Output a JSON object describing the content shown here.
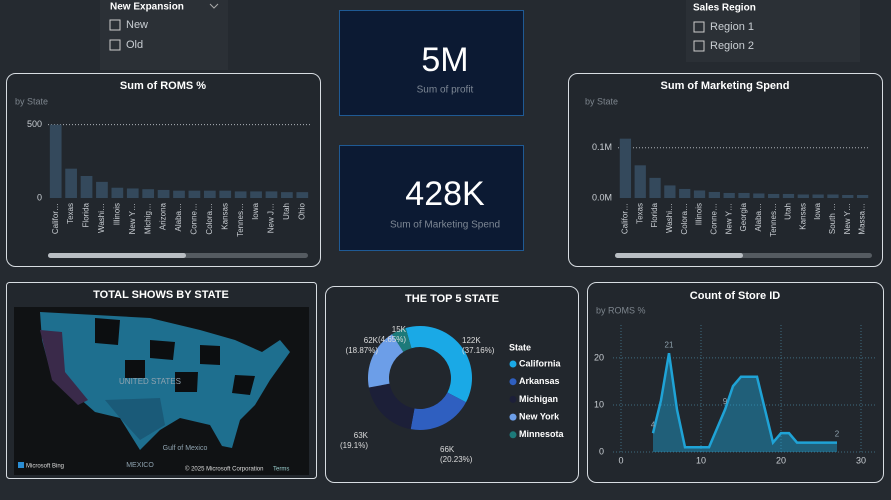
{
  "slicers": [
    {
      "title": "New Expansion",
      "items": [
        "New",
        "Old"
      ]
    },
    {
      "title": "Sales Region",
      "items": [
        "Region 1",
        "Region 2"
      ]
    }
  ],
  "cards": [
    {
      "value": "5M",
      "label": "Sum of profit"
    },
    {
      "value": "428K",
      "label": "Sum of Marketing Spend"
    }
  ],
  "map": {
    "title": "TOTAL SHOWS BY STATE",
    "country": "UNITED STATES",
    "gulf": "Gulf of Mexico",
    "mexico": "MEXICO",
    "brand": "Microsoft Bing",
    "attribution": "© 2025 Microsoft Corporation",
    "terms": "Terms"
  },
  "chart_data": [
    {
      "type": "bar",
      "title": "Sum of ROMS %",
      "subtitle": "by State",
      "categories": [
        "Califor…",
        "Texas",
        "Florida",
        "Washi…",
        "Illinois",
        "New Y…",
        "Michig…",
        "Arizona",
        "Alaba…",
        "Conne…",
        "Colora…",
        "Kansas",
        "Tennes…",
        "Iowa",
        "New J…",
        "Utah",
        "Ohio"
      ],
      "values": [
        500,
        200,
        150,
        110,
        70,
        65,
        60,
        55,
        50,
        50,
        50,
        50,
        45,
        45,
        45,
        40,
        40
      ],
      "color": "#34495c",
      "ylim": [
        0,
        600
      ],
      "yticks": [
        0,
        500
      ],
      "grid": true
    },
    {
      "type": "bar",
      "title": "Sum of Marketing Spend",
      "subtitle": "by State",
      "categories": [
        "Califor…",
        "Texas",
        "Florida",
        "Washi…",
        "Colora…",
        "Illinois",
        "Conne…",
        "New Y…",
        "Georgia",
        "Alaba…",
        "Tennes…",
        "Utah",
        "Kansas",
        "Iowa",
        "South …",
        "New Y…",
        "Massa…"
      ],
      "values": [
        118000,
        65000,
        40000,
        25000,
        18000,
        15000,
        12000,
        10000,
        10000,
        9000,
        8000,
        8000,
        7000,
        7000,
        7000,
        6000,
        6000
      ],
      "color": "#34495c",
      "ylim": [
        0,
        175000
      ],
      "yticks": [
        {
          "value": 0,
          "label": "0.0M"
        },
        {
          "value": 100000,
          "label": "0.1M"
        }
      ],
      "grid": true
    },
    {
      "type": "pie",
      "title": "THE TOP 5 STATE",
      "legend_title": "State",
      "categories": [
        "California",
        "Arkansas",
        "Michigan",
        "New York",
        "Minnesota"
      ],
      "values": [
        122000,
        66000,
        63000,
        62000,
        15000
      ],
      "value_labels": [
        "122K",
        "66K",
        "63K",
        "62K",
        "15K"
      ],
      "percent_labels": [
        "(37.16%)",
        "(20.23%)",
        "(19.1%)",
        "(18.87%)",
        "(4.65%)"
      ],
      "colors": [
        "#1aa9e6",
        "#2f5fc0",
        "#1c1f38",
        "#6c9ee8",
        "#1d7a7a"
      ]
    },
    {
      "type": "area",
      "title": "Count of Store ID",
      "subtitle": "by ROMS %",
      "x": [
        4,
        5,
        6,
        7,
        8,
        9,
        10,
        11,
        12,
        13,
        14,
        15,
        16,
        17,
        18,
        19,
        20,
        21,
        22,
        23,
        24,
        25,
        26,
        27
      ],
      "values": [
        4,
        11,
        21,
        9,
        1,
        1,
        1,
        1,
        5,
        9,
        14,
        16,
        16,
        16,
        9,
        2,
        4,
        4,
        2,
        2,
        2,
        2,
        2,
        2
      ],
      "color": "#1fa3d6",
      "xlim": [
        -1,
        32
      ],
      "xticks": [
        0,
        10,
        20,
        30
      ],
      "ylim": [
        0,
        27
      ],
      "yticks": [
        0,
        10,
        20
      ],
      "grid": true
    }
  ]
}
